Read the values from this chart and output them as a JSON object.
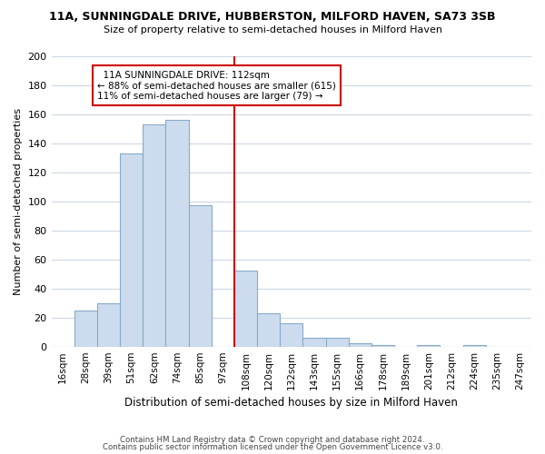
{
  "title1": "11A, SUNNINGDALE DRIVE, HUBBERSTON, MILFORD HAVEN, SA73 3SB",
  "title2": "Size of property relative to semi-detached houses in Milford Haven",
  "xlabel": "Distribution of semi-detached houses by size in Milford Haven",
  "ylabel": "Number of semi-detached properties",
  "bar_labels": [
    "16sqm",
    "28sqm",
    "39sqm",
    "51sqm",
    "62sqm",
    "74sqm",
    "85sqm",
    "97sqm",
    "108sqm",
    "120sqm",
    "132sqm",
    "143sqm",
    "155sqm",
    "166sqm",
    "178sqm",
    "189sqm",
    "201sqm",
    "212sqm",
    "224sqm",
    "235sqm",
    "247sqm"
  ],
  "bar_values": [
    0,
    25,
    30,
    133,
    153,
    156,
    97,
    0,
    52,
    23,
    16,
    6,
    6,
    2,
    1,
    0,
    1,
    0,
    1,
    0,
    0
  ],
  "bar_color": "#ccdcee",
  "bar_edge_color": "#88aac8",
  "vline_x_index": 8,
  "vline_color": "#cc0000",
  "ylim": [
    0,
    200
  ],
  "yticks": [
    0,
    20,
    40,
    60,
    80,
    100,
    120,
    140,
    160,
    180,
    200
  ],
  "annotation_title": "11A SUNNINGDALE DRIVE: 112sqm",
  "annotation_line1": "← 88% of semi-detached houses are smaller (615)",
  "annotation_line2": "11% of semi-detached houses are larger (79) →",
  "annotation_box_color": "#ffffff",
  "annotation_box_edge": "#cc0000",
  "footnote1": "Contains HM Land Registry data © Crown copyright and database right 2024.",
  "footnote2": "Contains public sector information licensed under the Open Government Licence v3.0.",
  "bg_color": "#ffffff",
  "grid_color": "#ccd8e4"
}
